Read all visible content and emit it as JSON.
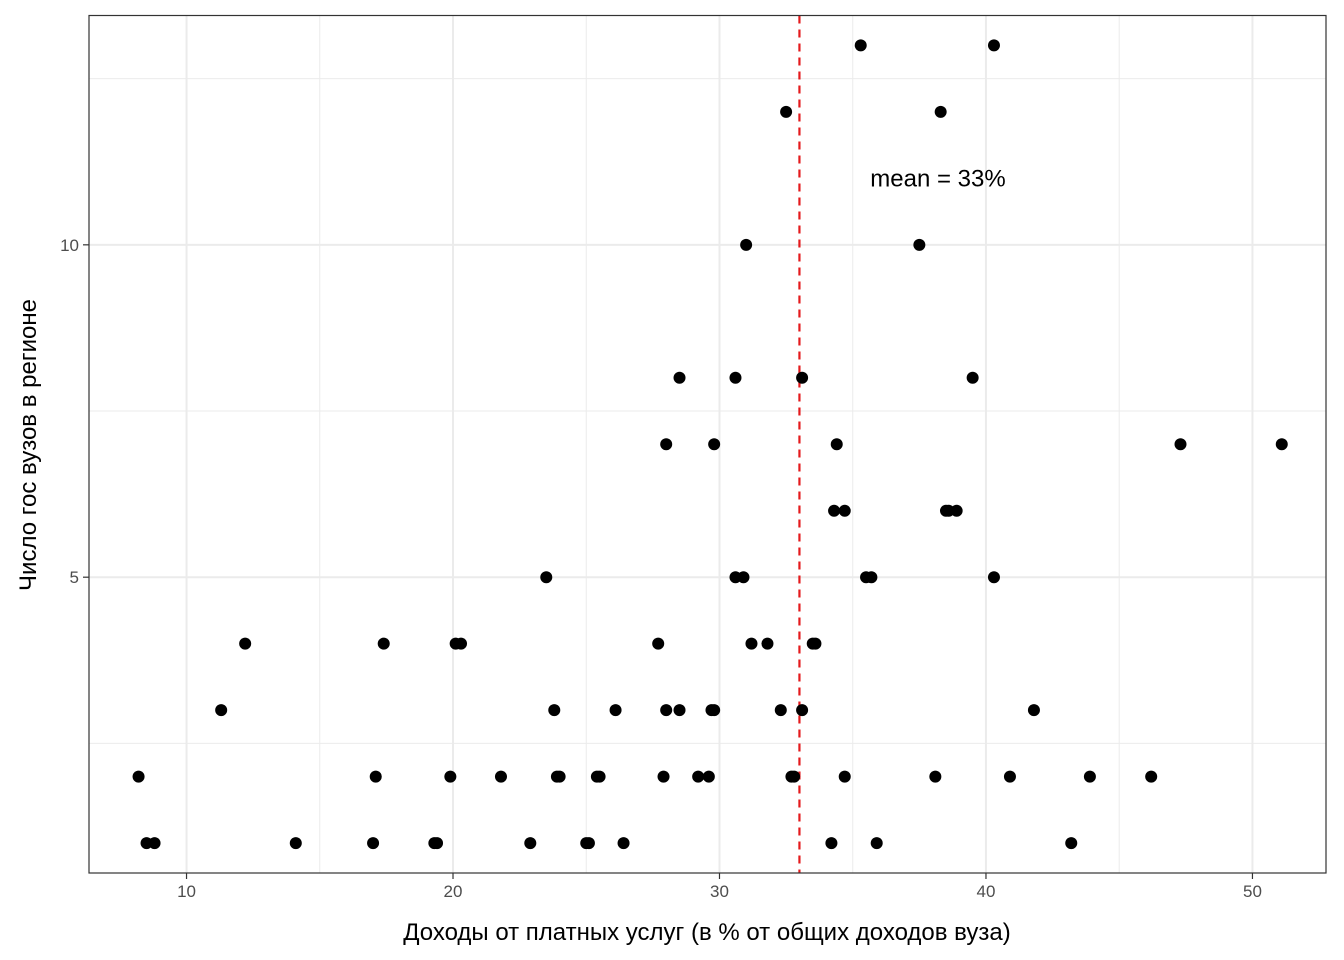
{
  "chart_data": {
    "type": "scatter",
    "xlabel": "Доходы от платных услуг (в % от общих доходов вуза)",
    "ylabel": "Число гос вузов в регионе",
    "xlim": [
      6.34,
      52.76
    ],
    "ylim": [
      0.55,
      13.45
    ],
    "x_ticks": [
      10,
      20,
      30,
      40,
      50
    ],
    "x_tick_labels": [
      "10",
      "20",
      "30",
      "40",
      "50"
    ],
    "y_ticks": [
      5,
      10
    ],
    "y_tick_labels": [
      "5",
      "10"
    ],
    "grid": true,
    "background": "#ffffff",
    "point_color": "#000000",
    "reference_line": {
      "x": 33,
      "color": "#e41a1c",
      "style": "dashed",
      "label": "mean = 33%",
      "label_at": [
        38.2,
        11
      ]
    },
    "points": [
      {
        "x": 35.3,
        "y": 13
      },
      {
        "x": 40.3,
        "y": 13
      },
      {
        "x": 32.5,
        "y": 12
      },
      {
        "x": 38.3,
        "y": 12
      },
      {
        "x": 31.0,
        "y": 10
      },
      {
        "x": 37.5,
        "y": 10
      },
      {
        "x": 28.5,
        "y": 8
      },
      {
        "x": 30.6,
        "y": 8
      },
      {
        "x": 33.1,
        "y": 8
      },
      {
        "x": 39.5,
        "y": 8
      },
      {
        "x": 28.0,
        "y": 7
      },
      {
        "x": 29.8,
        "y": 7
      },
      {
        "x": 34.4,
        "y": 7
      },
      {
        "x": 47.3,
        "y": 7
      },
      {
        "x": 51.1,
        "y": 7
      },
      {
        "x": 34.3,
        "y": 6
      },
      {
        "x": 34.7,
        "y": 6
      },
      {
        "x": 38.5,
        "y": 6
      },
      {
        "x": 38.6,
        "y": 6
      },
      {
        "x": 38.9,
        "y": 6
      },
      {
        "x": 23.5,
        "y": 5
      },
      {
        "x": 30.6,
        "y": 5
      },
      {
        "x": 30.9,
        "y": 5
      },
      {
        "x": 35.5,
        "y": 5
      },
      {
        "x": 35.7,
        "y": 5
      },
      {
        "x": 40.3,
        "y": 5
      },
      {
        "x": 12.2,
        "y": 4
      },
      {
        "x": 17.4,
        "y": 4
      },
      {
        "x": 20.1,
        "y": 4
      },
      {
        "x": 20.3,
        "y": 4
      },
      {
        "x": 27.7,
        "y": 4
      },
      {
        "x": 31.2,
        "y": 4
      },
      {
        "x": 31.8,
        "y": 4
      },
      {
        "x": 33.5,
        "y": 4
      },
      {
        "x": 33.6,
        "y": 4
      },
      {
        "x": 11.3,
        "y": 3
      },
      {
        "x": 23.8,
        "y": 3
      },
      {
        "x": 26.1,
        "y": 3
      },
      {
        "x": 28.0,
        "y": 3
      },
      {
        "x": 28.5,
        "y": 3
      },
      {
        "x": 29.7,
        "y": 3
      },
      {
        "x": 29.8,
        "y": 3
      },
      {
        "x": 32.3,
        "y": 3
      },
      {
        "x": 33.1,
        "y": 3
      },
      {
        "x": 41.8,
        "y": 3
      },
      {
        "x": 8.2,
        "y": 2
      },
      {
        "x": 17.1,
        "y": 2
      },
      {
        "x": 19.9,
        "y": 2
      },
      {
        "x": 21.8,
        "y": 2
      },
      {
        "x": 23.9,
        "y": 2
      },
      {
        "x": 24.0,
        "y": 2
      },
      {
        "x": 25.4,
        "y": 2
      },
      {
        "x": 25.5,
        "y": 2
      },
      {
        "x": 27.9,
        "y": 2
      },
      {
        "x": 29.2,
        "y": 2
      },
      {
        "x": 29.6,
        "y": 2
      },
      {
        "x": 32.7,
        "y": 2
      },
      {
        "x": 32.8,
        "y": 2
      },
      {
        "x": 34.7,
        "y": 2
      },
      {
        "x": 38.1,
        "y": 2
      },
      {
        "x": 40.9,
        "y": 2
      },
      {
        "x": 43.9,
        "y": 2
      },
      {
        "x": 46.2,
        "y": 2
      },
      {
        "x": 8.5,
        "y": 1
      },
      {
        "x": 8.8,
        "y": 1
      },
      {
        "x": 14.1,
        "y": 1
      },
      {
        "x": 17.0,
        "y": 1
      },
      {
        "x": 19.3,
        "y": 1
      },
      {
        "x": 19.4,
        "y": 1
      },
      {
        "x": 22.9,
        "y": 1
      },
      {
        "x": 25.0,
        "y": 1
      },
      {
        "x": 25.1,
        "y": 1
      },
      {
        "x": 26.4,
        "y": 1
      },
      {
        "x": 34.2,
        "y": 1
      },
      {
        "x": 35.9,
        "y": 1
      },
      {
        "x": 43.2,
        "y": 1
      }
    ]
  }
}
